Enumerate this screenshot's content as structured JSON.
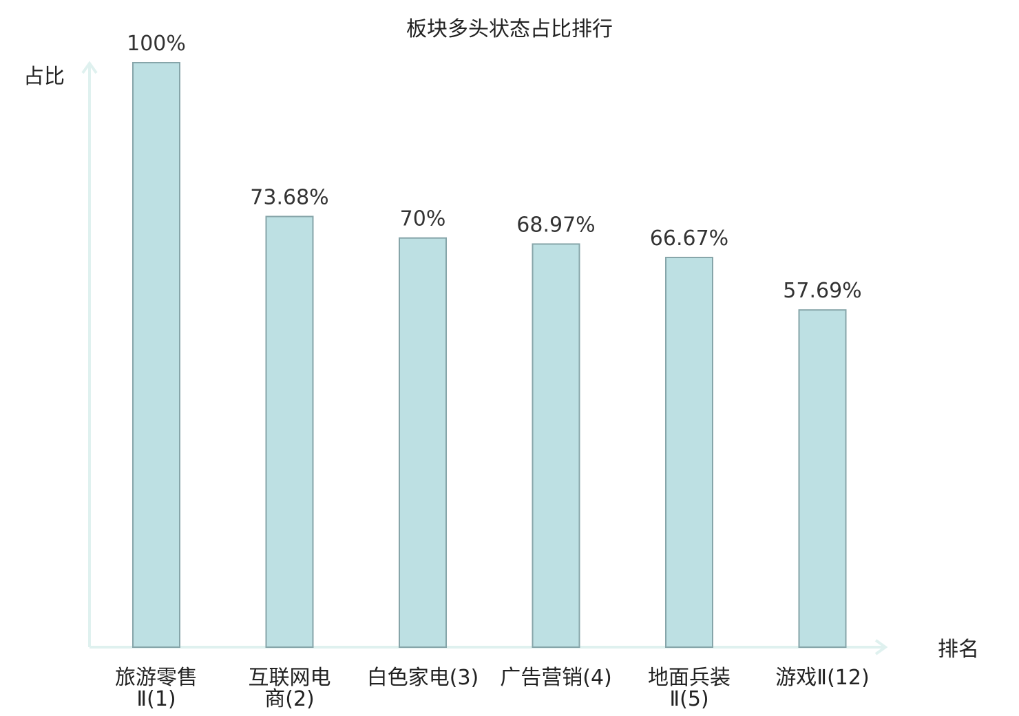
{
  "chart_data": {
    "type": "bar",
    "title": "板块多头状态占比排行",
    "ylabel": "占比",
    "xlabel": "排名",
    "ylim": [
      0,
      100
    ],
    "grid": false,
    "categories": [
      {
        "name": "旅游零售",
        "name2": "Ⅱ",
        "rank": "(1)",
        "wrap": true,
        "highlight": false
      },
      {
        "name": "互联网电",
        "name2": "商",
        "rank": "(2)",
        "wrap": true,
        "highlight": false
      },
      {
        "name": "白色家电",
        "name2": "",
        "rank": "(3)",
        "wrap": false,
        "highlight": false
      },
      {
        "name": "广告营销",
        "name2": "",
        "rank": "(4)",
        "wrap": false,
        "highlight": false
      },
      {
        "name": "地面兵装",
        "name2": "Ⅱ",
        "rank": "(5)",
        "wrap": true,
        "highlight": false
      },
      {
        "name": "游戏Ⅱ",
        "name2": "",
        "rank": "(12)",
        "wrap": false,
        "highlight": true
      }
    ],
    "values": [
      100,
      73.68,
      70,
      68.97,
      66.67,
      57.69
    ],
    "value_labels": [
      "100%",
      "73.68%",
      "70%",
      "68.97%",
      "66.67%",
      "57.69%"
    ],
    "colors": {
      "bar_fill": "#bde0e3",
      "bar_stroke": "#86a5a9",
      "axis": "#dff1ef",
      "highlight_text": "#e0201a",
      "text": "#222222"
    }
  }
}
